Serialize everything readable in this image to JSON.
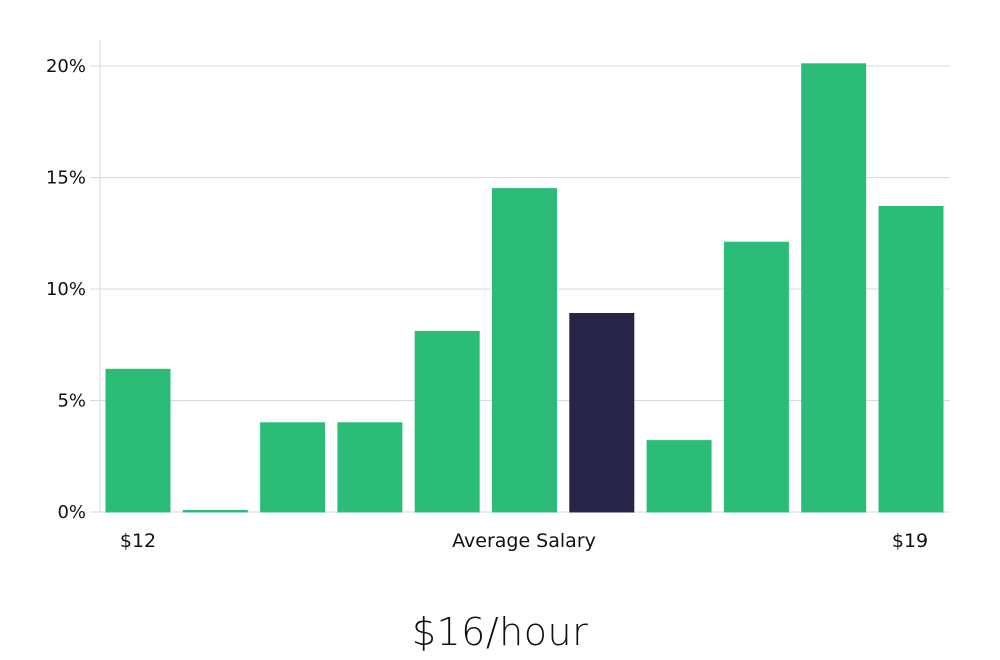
{
  "chart_data": {
    "type": "bar",
    "categories": [
      "",
      "",
      "",
      "",
      "",
      "",
      "",
      "",
      "",
      "",
      ""
    ],
    "values": [
      6.4,
      0.05,
      4.0,
      4.0,
      8.1,
      14.5,
      8.9,
      3.2,
      12.1,
      20.1,
      13.7
    ],
    "highlight_index": 6,
    "colors": {
      "bar": "#2bbd77",
      "highlight": "#272547",
      "grid": "#d9d9d9"
    },
    "ylim": [
      0,
      21
    ],
    "yticks": [
      {
        "value": 0,
        "label": "0%"
      },
      {
        "value": 5,
        "label": "5%"
      },
      {
        "value": 10,
        "label": "10%"
      },
      {
        "value": 15,
        "label": "15%"
      },
      {
        "value": 20,
        "label": "20%"
      }
    ],
    "x_labels": {
      "left": "$12",
      "center": "Average Salary",
      "right": "$19"
    },
    "grid": true,
    "legend": "none"
  },
  "headline": "$16/hour"
}
